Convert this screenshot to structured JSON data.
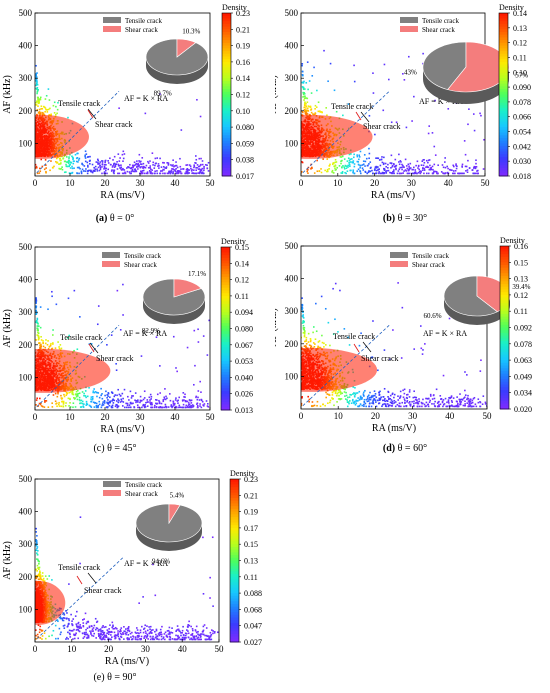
{
  "figure": {
    "colormap": [
      "#7b2cff",
      "#3b3bff",
      "#1f7fff",
      "#17c8ff",
      "#19f0c8",
      "#4dff5c",
      "#b8ff1e",
      "#ffea00",
      "#ffa500",
      "#ff5a00",
      "#ff1a00"
    ],
    "legend_colors": {
      "tensile": "#808080",
      "shear": "#f47d7d"
    }
  },
  "chart_data": [
    {
      "type": "scatter",
      "panel_label": "(a)",
      "caption": "θ = 0°",
      "xlabel": "RA (ms/V)",
      "ylabel": "AF (kHz)",
      "xlim": [
        0,
        50
      ],
      "ylim": [
        0,
        500
      ],
      "xticks": [
        "0",
        "10",
        "20",
        "30",
        "40",
        "50"
      ],
      "yticks": [
        "100",
        "200",
        "300",
        "400",
        "500"
      ],
      "colorbar": {
        "title": "Density",
        "ticks": [
          "0.23",
          "0.21",
          "0.19",
          "0.16",
          "0.14",
          "0.12",
          "0.10",
          "0.080",
          "0.059",
          "0.038",
          "0.017"
        ]
      },
      "annotations": {
        "tensile": "Tensile crack",
        "shear": "Shear crack",
        "equation": "AF = K × RA"
      },
      "pie": {
        "legend": [
          "Tensile crack",
          "Shear crack"
        ],
        "slices": [
          {
            "name": "Tensile crack",
            "value": 89.7,
            "label": "89.7%"
          },
          {
            "name": "Shear crack",
            "value": 10.3,
            "label": "10.3%"
          }
        ]
      }
    },
    {
      "type": "scatter",
      "panel_label": "(b)",
      "caption": "θ = 30°",
      "xlabel": "RA (ms/V)",
      "ylabel": "AF (kHz)",
      "xlim": [
        0,
        50
      ],
      "ylim": [
        0,
        500
      ],
      "xticks": [
        "0",
        "10",
        "20",
        "30",
        "40",
        "50"
      ],
      "yticks": [
        "100",
        "200",
        "300",
        "400",
        "500"
      ],
      "colorbar": {
        "title": "Density",
        "ticks": [
          "0.14",
          "0.13",
          "0.12",
          "0.11",
          "0.10",
          "0.090",
          "0.078",
          "0.066",
          "0.054",
          "0.042",
          "0.030",
          "0.018"
        ]
      },
      "annotations": {
        "tensile": "Tensile crack",
        "shear": "Shear crack",
        "equation": "AF = K × RA"
      },
      "pie": {
        "legend": [
          "Tensile crack",
          "Shear crack"
        ],
        "slices": [
          {
            "name": "Tensile crack",
            "value": 43,
            "label": "43%"
          },
          {
            "name": "Shear crack",
            "value": 57,
            "label": "57%"
          }
        ]
      }
    },
    {
      "type": "scatter",
      "panel_label": "(c)",
      "caption": "θ = 45°",
      "xlabel": "RA (ms/V)",
      "ylabel": "AF (kHz)",
      "xlim": [
        0,
        50
      ],
      "ylim": [
        0,
        500
      ],
      "xticks": [
        "0",
        "10",
        "20",
        "30",
        "40",
        "50"
      ],
      "yticks": [
        "100",
        "200",
        "300",
        "400",
        "500"
      ],
      "colorbar": {
        "title": "Density",
        "ticks": [
          "0.15",
          "0.14",
          "0.12",
          "0.11",
          "0.094",
          "0.080",
          "0.067",
          "0.053",
          "0.040",
          "0.026",
          "0.013"
        ]
      },
      "annotations": {
        "tensile": "Tensile crack",
        "shear": "Shear crack",
        "equation": "AF = K × RA"
      },
      "pie": {
        "legend": [
          "Tensile crack",
          "Shear crack"
        ],
        "slices": [
          {
            "name": "Tensile crack",
            "value": 82.9,
            "label": "82.9%"
          },
          {
            "name": "Shear crack",
            "value": 17.1,
            "label": "17.1%"
          }
        ]
      }
    },
    {
      "type": "scatter",
      "panel_label": "(d)",
      "caption": "θ = 60°",
      "xlabel": "RA (ms/V)",
      "ylabel": "AF (kHz)",
      "xlim": [
        0,
        50
      ],
      "ylim": [
        0,
        500
      ],
      "xticks": [
        "0",
        "10",
        "20",
        "30",
        "40",
        "50"
      ],
      "yticks": [
        "100",
        "200",
        "300",
        "400",
        "500"
      ],
      "colorbar": {
        "title": "Density",
        "ticks": [
          "0.16",
          "0.15",
          "0.13",
          "0.12",
          "0.11",
          "0.092",
          "0.078",
          "0.063",
          "0.049",
          "0.034",
          "0.020"
        ]
      },
      "annotations": {
        "tensile": "Tensile crack",
        "shear": "Shear crack",
        "equation": "AF = K × RA"
      },
      "pie": {
        "legend": [
          "Tensile crack",
          "Shear crack"
        ],
        "slices": [
          {
            "name": "Tensile crack",
            "value": 60.6,
            "label": "60.6%"
          },
          {
            "name": "Shear crack",
            "value": 39.4,
            "label": "39.4%"
          }
        ]
      }
    },
    {
      "type": "scatter",
      "panel_label": "(e)",
      "caption": "θ = 90°",
      "xlabel": "RA (ms/V)",
      "ylabel": "AF (kHz)",
      "xlim": [
        0,
        50
      ],
      "ylim": [
        0,
        500
      ],
      "xticks": [
        "0",
        "10",
        "20",
        "30",
        "40",
        "50"
      ],
      "yticks": [
        "100",
        "200",
        "300",
        "400",
        "500"
      ],
      "colorbar": {
        "title": "Density",
        "ticks": [
          "0.23",
          "0.21",
          "0.19",
          "0.17",
          "0.15",
          "0.13",
          "0.11",
          "0.088",
          "0.068",
          "0.047",
          "0.027"
        ]
      },
      "annotations": {
        "tensile": "Tensile crack",
        "shear": "Shear crack",
        "equation": "AF = K × RA"
      },
      "pie": {
        "legend": [
          "Tensile crack",
          "Shear crack"
        ],
        "slices": [
          {
            "name": "Tensile crack",
            "value": 94.6,
            "label": "94.6%"
          },
          {
            "name": "Shear crack",
            "value": 5.4,
            "label": "5.4%"
          }
        ]
      }
    }
  ]
}
